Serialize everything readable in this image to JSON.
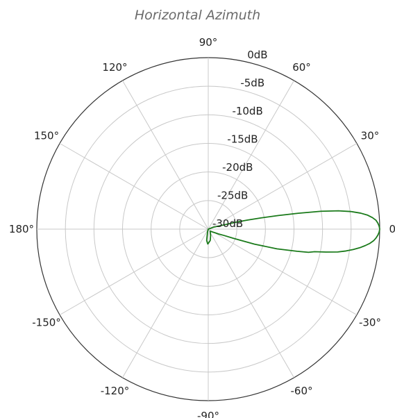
{
  "chart_data": {
    "type": "line",
    "subtype": "polar",
    "title": "Horizontal Azimuth",
    "angle_ticks": [
      "0°",
      "30°",
      "60°",
      "90°",
      "120°",
      "150°",
      "180°",
      "-150°",
      "-120°",
      "-90°",
      "-60°",
      "-30°"
    ],
    "radial_ticks": [
      "0dB",
      "-5dB",
      "-10dB",
      "-15dB",
      "-20dB",
      "-25dB",
      "-30dB"
    ],
    "r_range_db": [
      -30,
      0
    ],
    "grid": true,
    "series": [
      {
        "color": "#1a7a1a",
        "angle_deg": [
          0,
          1,
          2,
          3,
          4,
          5,
          6,
          7,
          8,
          9,
          10,
          11,
          12,
          13,
          14,
          15,
          20,
          25,
          30,
          40,
          60,
          90,
          120,
          150,
          180,
          -150,
          -120,
          -105,
          -98,
          -92,
          -90,
          -80,
          -70,
          -55,
          -45,
          -38,
          -32,
          -28,
          -25,
          -22,
          -20,
          -18,
          -16,
          -14,
          -13,
          -12,
          -11,
          -10,
          -9,
          -8,
          -7,
          -6,
          -5,
          -4,
          -3,
          -2,
          -1,
          0
        ],
        "gain_db": [
          0,
          -0.1,
          -0.3,
          -0.6,
          -1.2,
          -2,
          -3.2,
          -4.8,
          -7,
          -10,
          -14,
          -17.5,
          -20.5,
          -23,
          -25,
          -27,
          -29,
          -30,
          -30,
          -30,
          -30,
          -30,
          -30,
          -30,
          -30,
          -30,
          -30,
          -29.5,
          -28,
          -27.4,
          -27.5,
          -28,
          -28.8,
          -29.4,
          -29.5,
          -29.3,
          -29,
          -28.6,
          -28,
          -27.1,
          -25.3,
          -21.5,
          -17.5,
          -14,
          -12,
          -11,
          -9,
          -7,
          -5.6,
          -4.4,
          -3.3,
          -2.4,
          -1.6,
          -1,
          -0.6,
          -0.3,
          -0.1,
          0
        ]
      }
    ]
  }
}
